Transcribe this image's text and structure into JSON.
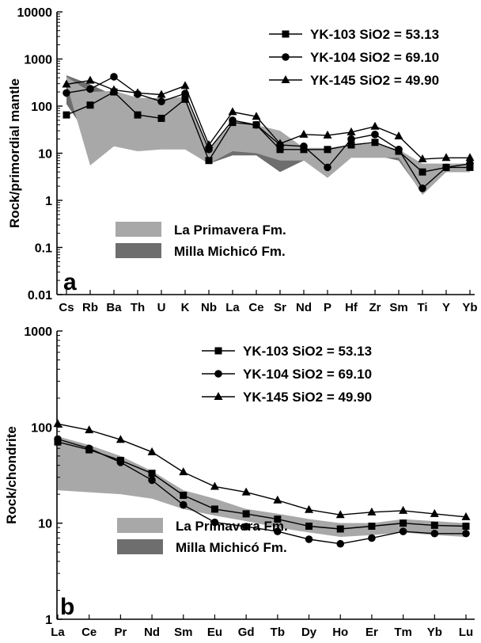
{
  "colors": {
    "la_primavera_fill": "#a8a8a8",
    "milla_michico_fill": "#6e6e6e",
    "line": "#000000"
  },
  "chart_data": [
    {
      "panel_label": "a",
      "type": "line",
      "ylabel": "Rock/primordial mantle",
      "yscale": "log",
      "ylim": [
        0.01,
        10000
      ],
      "ytick_labels": [
        "0.01",
        "0.1",
        "1",
        "10",
        "100",
        "1000",
        "10000"
      ],
      "categories": [
        "Cs",
        "Rb",
        "Ba",
        "Th",
        "U",
        "K",
        "Nb",
        "La",
        "Ce",
        "Sr",
        "Nd",
        "P",
        "Hf",
        "Zr",
        "Sm",
        "Ti",
        "Y",
        "Yb"
      ],
      "series": [
        {
          "name": "YK-103 SiO2 = 53.13",
          "marker": "square",
          "values": [
            65,
            105,
            200,
            65,
            55,
            140,
            7,
            45,
            40,
            12,
            12,
            12,
            15,
            17,
            11,
            4,
            5,
            5
          ]
        },
        {
          "name": "YK-104 SiO2 = 69.10",
          "marker": "circle",
          "values": [
            190,
            230,
            420,
            180,
            125,
            185,
            12,
            50,
            40,
            15,
            14,
            5,
            20,
            25,
            12,
            1.8,
            5,
            6
          ]
        },
        {
          "name": "YK-145 SiO2 = 49.90",
          "marker": "triangle",
          "values": [
            290,
            350,
            220,
            190,
            175,
            270,
            15,
            75,
            60,
            16,
            25,
            24,
            28,
            37,
            23,
            7.5,
            8,
            8
          ]
        }
      ],
      "bands": [
        {
          "name": "Milla Michicó Fm.",
          "fill": "#6e6e6e",
          "upper": [
            450,
            290,
            170,
            150,
            145,
            130,
            12,
            40,
            30,
            12,
            11,
            11,
            14,
            14,
            10,
            6,
            6,
            6
          ],
          "lower": [
            110,
            20,
            14,
            14,
            14,
            14,
            6,
            9,
            9,
            4,
            7,
            7,
            9,
            9,
            7,
            1.4,
            4,
            4
          ]
        },
        {
          "name": "La Primavera Fm.",
          "fill": "#a8a8a8",
          "upper": [
            420,
            200,
            210,
            150,
            140,
            160,
            12,
            45,
            40,
            30,
            13,
            13,
            15,
            16,
            12,
            6,
            6,
            6
          ],
          "lower": [
            300,
            5.5,
            14,
            11,
            12,
            12,
            6,
            11,
            10,
            7,
            7,
            3,
            8,
            8,
            8,
            1.3,
            4,
            4
          ]
        }
      ]
    },
    {
      "panel_label": "b",
      "type": "line",
      "ylabel": "Rock/chondrite",
      "yscale": "log",
      "ylim": [
        1,
        1000
      ],
      "ytick_labels": [
        "1",
        "10",
        "100",
        "1000"
      ],
      "categories": [
        "La",
        "Ce",
        "Pr",
        "Nd",
        "Sm",
        "Eu",
        "Gd",
        "Tb",
        "Dy",
        "Ho",
        "Er",
        "Tm",
        "Yb",
        "Lu"
      ],
      "series": [
        {
          "name": "YK-103 SiO2 = 53.13",
          "marker": "square",
          "values": [
            70,
            58,
            45,
            33,
            19.5,
            14,
            12.5,
            11,
            9.3,
            8.7,
            9.3,
            10,
            9.5,
            9.3
          ]
        },
        {
          "name": "YK-104 SiO2 = 69.10",
          "marker": "circle",
          "values": [
            75,
            60,
            43,
            28,
            15.5,
            10.2,
            9.2,
            8.2,
            6.8,
            6.1,
            7,
            8.2,
            7.8,
            7.8
          ]
        },
        {
          "name": "YK-145 SiO2 = 49.90",
          "marker": "triangle",
          "values": [
            108,
            93,
            74,
            55,
            34,
            24,
            21,
            17.3,
            13.8,
            12.2,
            13,
            13.5,
            12.5,
            11.6
          ]
        }
      ],
      "bands": [
        {
          "name": "Milla Michicó Fm.",
          "fill": "#6e6e6e",
          "upper": [
            25,
            24,
            23,
            22,
            19,
            17,
            14,
            12.5,
            11,
            10,
            10,
            10.5,
            10,
            9.5
          ],
          "lower": [
            24,
            23,
            22,
            20,
            17.5,
            15,
            13,
            11.5,
            10,
            9,
            9,
            9.5,
            9,
            8.5
          ]
        },
        {
          "name": "La Primavera Fm.",
          "fill": "#a8a8a8",
          "upper": [
            80,
            65,
            50,
            35,
            22,
            18,
            14,
            12.5,
            11,
            10,
            10,
            11,
            10.5,
            10
          ],
          "lower": [
            22,
            21,
            20,
            18,
            14,
            12,
            10.5,
            9,
            8,
            7.2,
            7.5,
            8,
            7.5,
            7.2
          ]
        }
      ]
    }
  ]
}
